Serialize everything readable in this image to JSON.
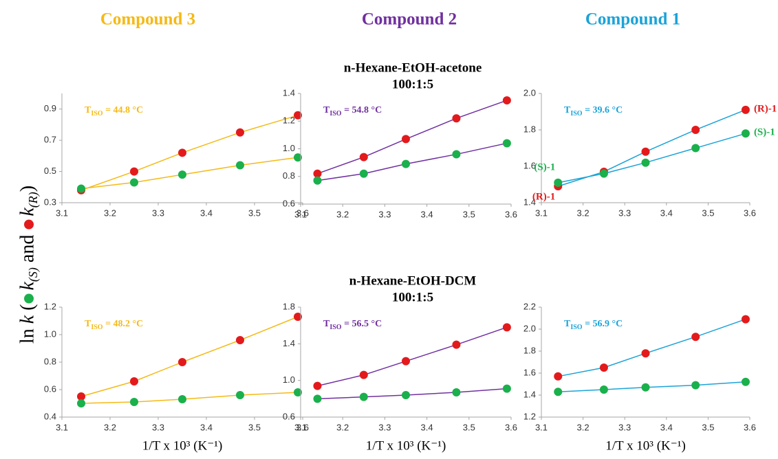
{
  "headers": {
    "columns": [
      "Compound 3",
      "Compound 2",
      "Compound 1"
    ],
    "column_colors": [
      "#f5b916",
      "#7030a0",
      "#1aa3d8"
    ],
    "rows": [
      [
        "n-Hexane-EtOH-acetone",
        "100:1:5"
      ],
      [
        "n-Hexane-EtOH-DCM",
        "100:1:5"
      ]
    ],
    "ylabel": [
      "ln ",
      "k",
      " (",
      "k",
      "(S)",
      " and ",
      "k",
      "(R)",
      ")"
    ],
    "ylabel_dot_colors": [
      "#1ab04c",
      "#e31a1c"
    ]
  },
  "chart_data": [
    {
      "type": "scatter",
      "color": "#f5b916",
      "annotation": {
        "base": "T",
        "sub": "ISO",
        "text": " = 44.8 °C"
      },
      "x": [
        3.14,
        3.25,
        3.35,
        3.47,
        3.59
      ],
      "xlim": [
        3.1,
        3.6
      ],
      "xticks": [
        3.1,
        3.2,
        3.3,
        3.4,
        3.5,
        3.6
      ],
      "ylim": [
        0.3,
        1.0
      ],
      "yticks": [
        0.3,
        0.5,
        0.7,
        0.9
      ],
      "series": [
        {
          "color": "#e31a1c",
          "values": [
            0.38,
            0.5,
            0.62,
            0.75,
            0.86
          ]
        },
        {
          "color": "#1ab04c",
          "values": [
            0.39,
            0.43,
            0.48,
            0.54,
            0.59
          ]
        }
      ]
    },
    {
      "type": "scatter",
      "color": "#7030a0",
      "annotation": {
        "base": "T",
        "sub": "ISO",
        "text": " = 54.8 °C"
      },
      "x": [
        3.14,
        3.25,
        3.35,
        3.47,
        3.59
      ],
      "xlim": [
        3.1,
        3.6
      ],
      "xticks": [
        3.1,
        3.2,
        3.3,
        3.4,
        3.5,
        3.6
      ],
      "ylim": [
        0.6,
        1.4
      ],
      "yticks": [
        0.6,
        0.8,
        {
          "value": 1,
          "label": "1.0"
        },
        1.2,
        1.4
      ],
      "series": [
        {
          "color": "#e31a1c",
          "values": [
            0.82,
            0.94,
            1.07,
            1.22,
            1.35
          ]
        },
        {
          "color": "#1ab04c",
          "values": [
            0.77,
            0.82,
            0.89,
            0.96,
            1.04
          ]
        }
      ]
    },
    {
      "type": "scatter",
      "color": "#1aa3d8",
      "annotation": {
        "base": "T",
        "sub": "ISO",
        "text": " = 39.6 °C"
      },
      "x": [
        3.14,
        3.25,
        3.35,
        3.47,
        3.59
      ],
      "xlim": [
        3.1,
        3.6
      ],
      "xticks": [
        3.1,
        3.2,
        3.3,
        3.4,
        3.5,
        3.6
      ],
      "ylim": [
        1.4,
        2.0
      ],
      "yticks": [
        1.4,
        1.6,
        1.8,
        {
          "value": 2,
          "label": "2.0"
        }
      ],
      "series": [
        {
          "color": "#e31a1c",
          "values": [
            1.49,
            1.57,
            1.68,
            1.8,
            1.91
          ],
          "point_labels": [
            "(R)-1",
            null,
            null,
            null,
            "(R)-1"
          ]
        },
        {
          "color": "#1ab04c",
          "values": [
            1.51,
            1.56,
            1.62,
            1.7,
            1.78
          ],
          "point_labels": [
            "(S)-1",
            null,
            null,
            null,
            "(S)-1"
          ]
        }
      ]
    },
    {
      "type": "scatter",
      "color": "#f5b916",
      "annotation": {
        "base": "T",
        "sub": "ISO",
        "text": " = 48.2 °C"
      },
      "xlabel": "1/T x 10³ (K⁻¹)",
      "x": [
        3.14,
        3.25,
        3.35,
        3.47,
        3.59
      ],
      "xlim": [
        3.1,
        3.6
      ],
      "xticks": [
        3.1,
        3.2,
        3.3,
        3.4,
        3.5,
        3.6
      ],
      "ylim": [
        0.4,
        1.2
      ],
      "yticks": [
        0.4,
        0.6,
        0.8,
        {
          "value": 1,
          "label": "1.0"
        },
        1.2
      ],
      "series": [
        {
          "color": "#e31a1c",
          "values": [
            0.55,
            0.66,
            0.8,
            0.96,
            1.13
          ]
        },
        {
          "color": "#1ab04c",
          "values": [
            0.5,
            0.51,
            0.53,
            0.56,
            0.58
          ]
        }
      ]
    },
    {
      "type": "scatter",
      "color": "#7030a0",
      "annotation": {
        "base": "T",
        "sub": "ISO",
        "text": " = 56.5 °C"
      },
      "xlabel": "1/T x 10³ (K⁻¹)",
      "x": [
        3.14,
        3.25,
        3.35,
        3.47,
        3.59
      ],
      "xlim": [
        3.1,
        3.6
      ],
      "xticks": [
        3.1,
        3.2,
        3.3,
        3.4,
        3.5,
        3.6
      ],
      "ylim": [
        0.6,
        1.8
      ],
      "yticks": [
        0.6,
        {
          "value": 1,
          "label": "1.0"
        },
        1.4,
        1.8
      ],
      "series": [
        {
          "color": "#e31a1c",
          "values": [
            0.94,
            1.06,
            1.21,
            1.39,
            1.58
          ]
        },
        {
          "color": "#1ab04c",
          "values": [
            0.8,
            0.82,
            0.84,
            0.87,
            0.91
          ]
        }
      ]
    },
    {
      "type": "scatter",
      "color": "#1aa3d8",
      "annotation": {
        "base": "T",
        "sub": "ISO",
        "text": " = 56.9 °C"
      },
      "xlabel": "1/T x 10³ (K⁻¹)",
      "x": [
        3.14,
        3.25,
        3.35,
        3.47,
        3.59
      ],
      "xlim": [
        3.1,
        3.6
      ],
      "xticks": [
        3.1,
        3.2,
        3.3,
        3.4,
        3.5,
        3.6
      ],
      "ylim": [
        1.2,
        2.2
      ],
      "yticks": [
        1.2,
        1.4,
        1.6,
        1.8,
        {
          "value": 2,
          "label": "2.0"
        },
        2.2
      ],
      "series": [
        {
          "color": "#e31a1c",
          "values": [
            1.57,
            1.65,
            1.78,
            1.93,
            2.09
          ]
        },
        {
          "color": "#1ab04c",
          "values": [
            1.43,
            1.45,
            1.47,
            1.49,
            1.52
          ]
        }
      ]
    }
  ]
}
